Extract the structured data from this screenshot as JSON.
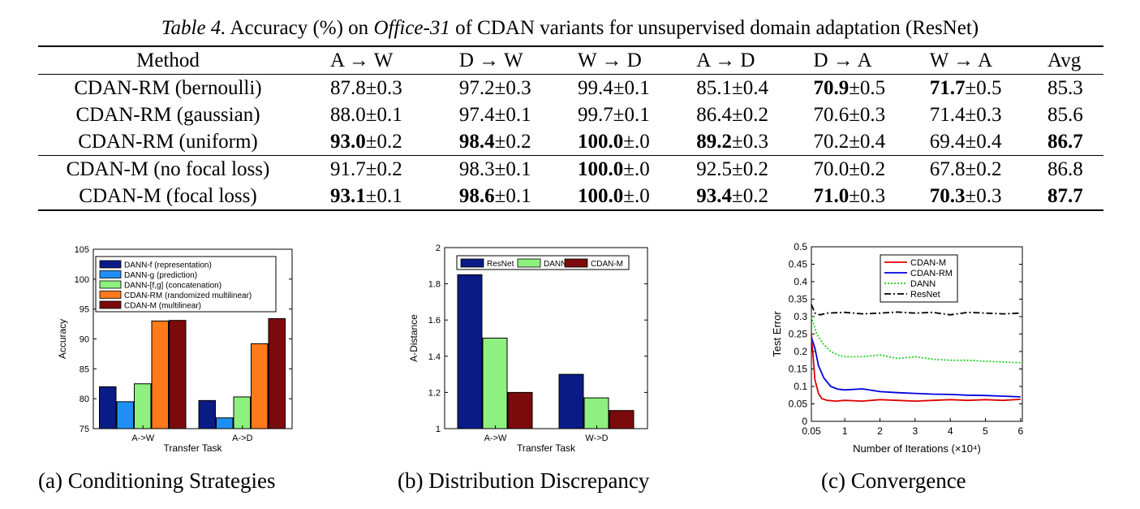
{
  "table": {
    "caption_label": "Table 4.",
    "caption_text_1": " Accuracy (%) on ",
    "caption_dataset": "Office-31",
    "caption_text_2": " of CDAN variants for unsupervised domain adaptation (ResNet)",
    "headers": [
      "Method",
      "A → W",
      "D → W",
      "W → D",
      "A → D",
      "D → A",
      "W → A",
      "Avg"
    ],
    "group1": [
      {
        "method": "CDAN-RM (bernoulli)",
        "cells": [
          [
            "87.8",
            "±0.3",
            false
          ],
          [
            "97.2",
            "±0.3",
            false
          ],
          [
            "99.4",
            "±0.1",
            false
          ],
          [
            "85.1",
            "±0.4",
            false
          ],
          [
            "70.9",
            "±0.5",
            true
          ],
          [
            "71.7",
            "±0.5",
            true
          ],
          [
            "85.3",
            "",
            false
          ]
        ]
      },
      {
        "method": "CDAN-RM (gaussian)",
        "cells": [
          [
            "88.0",
            "±0.1",
            false
          ],
          [
            "97.4",
            "±0.1",
            false
          ],
          [
            "99.7",
            "±0.1",
            false
          ],
          [
            "86.4",
            "±0.2",
            false
          ],
          [
            "70.6",
            "±0.3",
            false
          ],
          [
            "71.4",
            "±0.3",
            false
          ],
          [
            "85.6",
            "",
            false
          ]
        ]
      },
      {
        "method": "CDAN-RM (uniform)",
        "cells": [
          [
            "93.0",
            "±0.2",
            true
          ],
          [
            "98.4",
            "±0.2",
            true
          ],
          [
            "100.0",
            "±.0",
            true
          ],
          [
            "89.2",
            "±0.3",
            true
          ],
          [
            "70.2",
            "±0.4",
            false
          ],
          [
            "69.4",
            "±0.4",
            false
          ],
          [
            "86.7",
            "",
            true
          ]
        ]
      }
    ],
    "group2": [
      {
        "method": "CDAN-M (no focal loss)",
        "cells": [
          [
            "91.7",
            "±0.2",
            false
          ],
          [
            "98.3",
            "±0.1",
            false
          ],
          [
            "100.0",
            "±.0",
            true
          ],
          [
            "92.5",
            "±0.2",
            false
          ],
          [
            "70.0",
            "±0.2",
            false
          ],
          [
            "67.8",
            "±0.2",
            false
          ],
          [
            "86.8",
            "",
            false
          ]
        ]
      },
      {
        "method": "CDAN-M (focal loss)",
        "cells": [
          [
            "93.1",
            "±0.1",
            true
          ],
          [
            "98.6",
            "±0.1",
            true
          ],
          [
            "100.0",
            "±.0",
            true
          ],
          [
            "93.4",
            "±0.2",
            true
          ],
          [
            "71.0",
            "±0.3",
            true
          ],
          [
            "70.3",
            "±0.3",
            true
          ],
          [
            "87.7",
            "",
            true
          ]
        ]
      }
    ]
  },
  "figures": {
    "a_caption": "(a) Conditioning Strategies",
    "b_caption": "(b) Distribution Discrepancy",
    "c_caption": "(c) Convergence"
  },
  "chart_data": [
    {
      "type": "bar",
      "xlabel": "Transfer Task",
      "ylabel": "Accuracy",
      "ylim": [
        75,
        105
      ],
      "yticks": [
        75,
        80,
        85,
        90,
        95,
        100,
        105
      ],
      "categories": [
        "A->W",
        "A->D"
      ],
      "legend_placement": "top",
      "series": [
        {
          "name": "DANN-f (representation)",
          "color": "#0a1b86",
          "values": [
            82.0,
            79.7
          ]
        },
        {
          "name": "DANN-g (prediction)",
          "color": "#1f8ff5",
          "values": [
            79.5,
            76.8
          ]
        },
        {
          "name": "DANN-[f,g] (concatenation)",
          "color": "#8ef07f",
          "values": [
            82.5,
            80.3
          ]
        },
        {
          "name": "CDAN-RM (randomized multilinear)",
          "color": "#ff7a1a",
          "values": [
            93.0,
            89.2
          ]
        },
        {
          "name": "CDAN-M (multilinear)",
          "color": "#7b0a0a",
          "values": [
            93.1,
            93.4
          ]
        }
      ]
    },
    {
      "type": "bar",
      "xlabel": "Transfer Task",
      "ylabel": "A-Distance",
      "ylim": [
        1,
        2
      ],
      "yticks": [
        1,
        1.2,
        1.4,
        1.6,
        1.8,
        2
      ],
      "categories": [
        "A->W",
        "W->D"
      ],
      "legend_placement": "top",
      "series": [
        {
          "name": "ResNet",
          "color": "#0a1b86",
          "values": [
            1.85,
            1.3
          ]
        },
        {
          "name": "DANN",
          "color": "#8ef07f",
          "values": [
            1.5,
            1.17
          ]
        },
        {
          "name": "CDAN-M",
          "color": "#7b0a0a",
          "values": [
            1.2,
            1.1
          ]
        }
      ]
    },
    {
      "type": "line",
      "xlabel": "Number of Iterations (×10⁴)",
      "ylabel": "Test Error",
      "xlim": [
        0.05,
        6.05
      ],
      "ylim": [
        0,
        0.5
      ],
      "xticks": [
        0.05,
        1,
        2,
        3,
        4,
        5,
        6
      ],
      "xtick_labels": [
        "0.05",
        "1",
        "2",
        "3",
        "4",
        "5",
        "6"
      ],
      "yticks": [
        0,
        0.05,
        0.1,
        0.15,
        0.2,
        0.25,
        0.3,
        0.35,
        0.4,
        0.45,
        0.5
      ],
      "legend_placement": "top-center",
      "series": [
        {
          "name": "CDAN-M",
          "color": "#e00000",
          "dash": "solid",
          "x": [
            0.05,
            0.15,
            0.25,
            0.35,
            0.5,
            0.75,
            1,
            1.5,
            2,
            2.5,
            3,
            3.5,
            4,
            4.5,
            5,
            5.5,
            6
          ],
          "y": [
            0.25,
            0.12,
            0.08,
            0.065,
            0.06,
            0.058,
            0.06,
            0.058,
            0.062,
            0.06,
            0.058,
            0.06,
            0.062,
            0.06,
            0.062,
            0.06,
            0.063
          ]
        },
        {
          "name": "CDAN-RM",
          "color": "#0000e0",
          "dash": "solid",
          "x": [
            0.05,
            0.15,
            0.25,
            0.4,
            0.6,
            0.8,
            1,
            1.5,
            2,
            2.5,
            3,
            3.5,
            4,
            4.5,
            5,
            5.5,
            6
          ],
          "y": [
            0.24,
            0.21,
            0.16,
            0.125,
            0.1,
            0.092,
            0.09,
            0.093,
            0.085,
            0.082,
            0.08,
            0.078,
            0.077,
            0.075,
            0.074,
            0.072,
            0.07
          ]
        },
        {
          "name": "DANN",
          "color": "#22cc22",
          "dash": "dotted",
          "x": [
            0.05,
            0.2,
            0.4,
            0.6,
            0.8,
            1,
            1.5,
            2,
            2.5,
            3,
            3.5,
            4,
            4.5,
            5,
            5.5,
            6
          ],
          "y": [
            0.3,
            0.25,
            0.22,
            0.2,
            0.19,
            0.185,
            0.185,
            0.19,
            0.18,
            0.185,
            0.178,
            0.175,
            0.175,
            0.172,
            0.17,
            0.168
          ]
        },
        {
          "name": "ResNet",
          "color": "#000000",
          "dash": "dashdot",
          "x": [
            0.05,
            0.15,
            0.3,
            0.5,
            1,
            1.5,
            2,
            2.5,
            3,
            3.5,
            4,
            4.5,
            5,
            5.5,
            6
          ],
          "y": [
            0.335,
            0.31,
            0.305,
            0.31,
            0.312,
            0.308,
            0.31,
            0.313,
            0.31,
            0.312,
            0.305,
            0.312,
            0.31,
            0.308,
            0.31
          ]
        }
      ]
    }
  ]
}
